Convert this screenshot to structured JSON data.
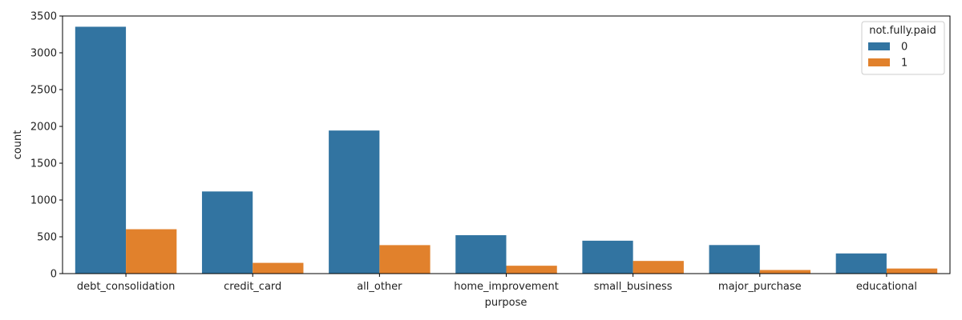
{
  "chart_data": {
    "type": "bar",
    "title": "",
    "xlabel": "purpose",
    "ylabel": "count",
    "ylim": [
      0,
      3500
    ],
    "yticks": [
      0,
      500,
      1000,
      1500,
      2000,
      2500,
      3000,
      3500
    ],
    "grid": false,
    "categories": [
      "debt_consolidation",
      "credit_card",
      "all_other",
      "home_improvement",
      "small_business",
      "major_purchase",
      "educational"
    ],
    "legend": {
      "title": "not.fully.paid",
      "position": "top-right"
    },
    "series": [
      {
        "name": "0",
        "color": "#3274a1",
        "values": [
          3354,
          1116,
          1944,
          522,
          447,
          388,
          274
        ]
      },
      {
        "name": "1",
        "color": "#e1812c",
        "values": [
          603,
          146,
          387,
          107,
          172,
          49,
          69
        ]
      }
    ]
  }
}
